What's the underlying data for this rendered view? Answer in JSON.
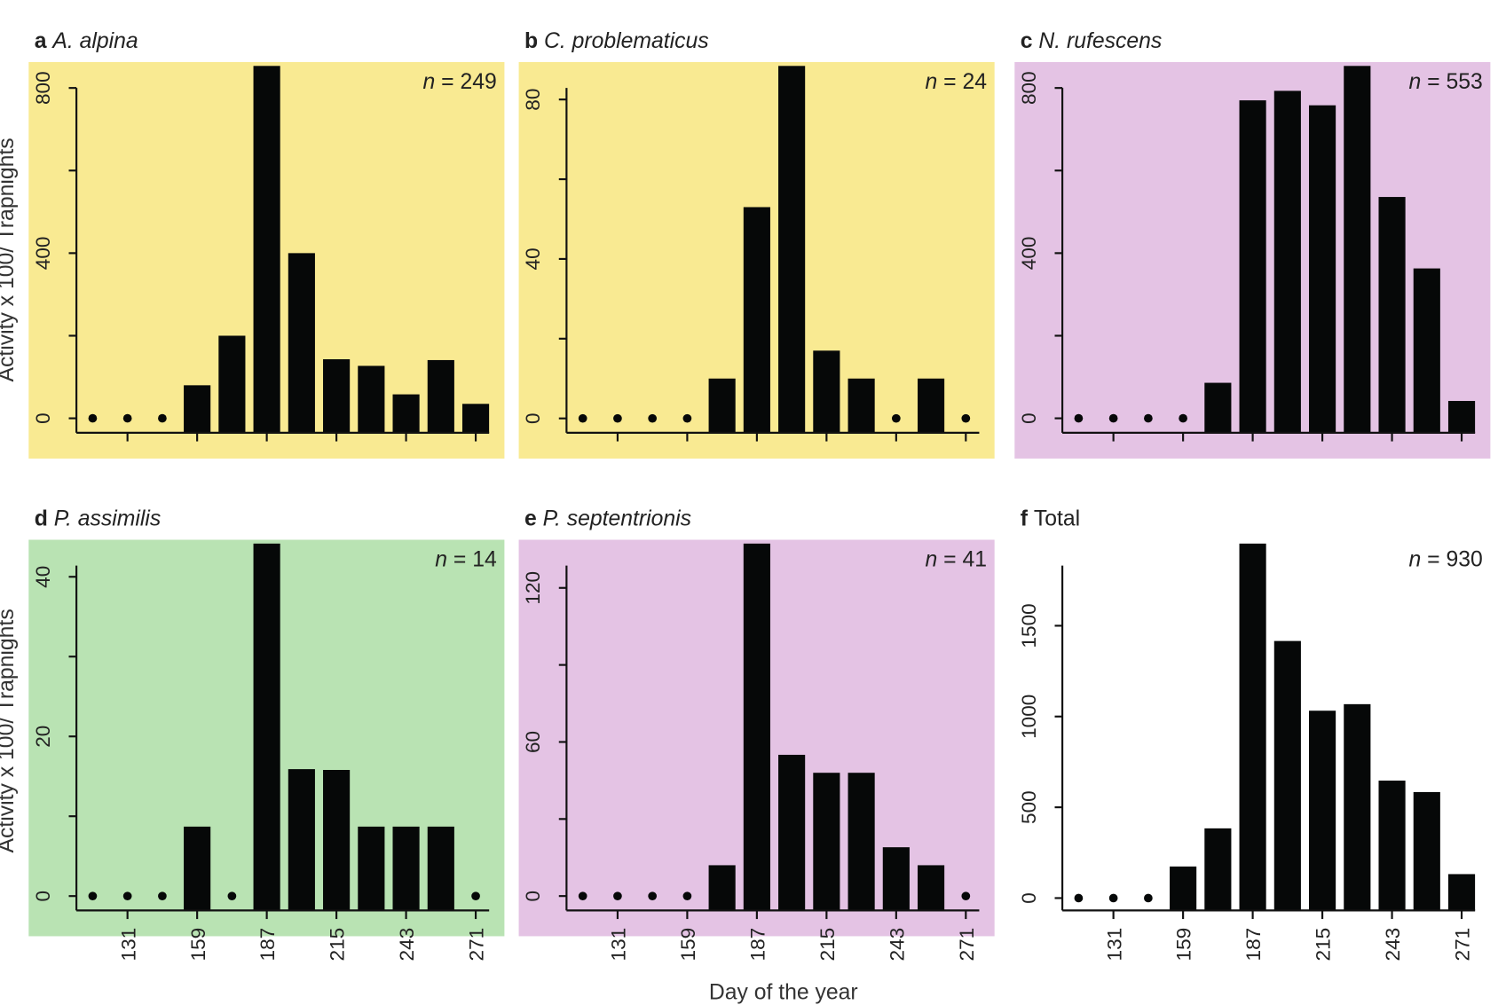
{
  "chart_data": [
    {
      "panel": "a",
      "title": "A. alpina",
      "n_label": "n = 249",
      "background": "#F9EA92",
      "type": "bar",
      "x": [
        117,
        131,
        145,
        159,
        173,
        187,
        201,
        215,
        229,
        243,
        257,
        271
      ],
      "values": [
        0,
        0,
        0,
        80,
        200,
        900,
        400,
        143,
        127,
        58,
        141,
        35
      ],
      "ylim": [
        -35,
        858
      ],
      "yticks": [
        0,
        200,
        400,
        600,
        800
      ],
      "ytick_labels": [
        "0",
        "",
        "400",
        "",
        "800"
      ]
    },
    {
      "panel": "b",
      "title": "C. problematicus",
      "n_label": "n = 24",
      "background": "#F9EA92",
      "type": "bar",
      "x": [
        117,
        131,
        145,
        159,
        173,
        187,
        201,
        215,
        229,
        243,
        257,
        271
      ],
      "values": [
        0,
        0,
        0,
        0,
        10,
        53,
        95,
        17,
        10,
        0,
        10,
        0
      ],
      "ylim": [
        -3.6,
        88.9
      ],
      "yticks": [
        0,
        20,
        40,
        60,
        80
      ],
      "ytick_labels": [
        "0",
        "",
        "40",
        "",
        "80"
      ]
    },
    {
      "panel": "c",
      "title": "N. rufescens",
      "n_label": "n = 553",
      "background": "#E4C3E4",
      "type": "bar",
      "x": [
        117,
        131,
        145,
        159,
        173,
        187,
        201,
        215,
        229,
        243,
        257,
        271
      ],
      "values": [
        0,
        0,
        0,
        0,
        86,
        770,
        793,
        758,
        900,
        536,
        363,
        42
      ],
      "ylim": [
        -35,
        858
      ],
      "yticks": [
        0,
        200,
        400,
        600,
        800
      ],
      "ytick_labels": [
        "0",
        "",
        "400",
        "",
        "800"
      ]
    },
    {
      "panel": "d",
      "title": "P. assimilis",
      "n_label": "n = 14",
      "background": "#B9E3B3",
      "type": "bar",
      "x": [
        117,
        131,
        145,
        159,
        173,
        187,
        201,
        215,
        229,
        243,
        257,
        271
      ],
      "values": [
        0,
        0,
        0,
        8.7,
        0,
        46,
        15.9,
        15.8,
        8.7,
        8.7,
        8.7,
        0
      ],
      "ylim": [
        -1.8,
        44.4
      ],
      "yticks": [
        0,
        10,
        20,
        30,
        40
      ],
      "ytick_labels": [
        "0",
        "",
        "20",
        "",
        "40"
      ]
    },
    {
      "panel": "e",
      "title": "P. septentrionis",
      "n_label": "n = 41",
      "background": "#E4C3E4",
      "type": "bar",
      "x": [
        117,
        131,
        145,
        159,
        173,
        187,
        201,
        215,
        229,
        243,
        257,
        271
      ],
      "values": [
        0,
        0,
        0,
        0,
        12,
        140,
        55,
        48,
        48,
        19,
        12,
        0
      ],
      "ylim": [
        -5.6,
        138
      ],
      "yticks": [
        0,
        30,
        60,
        90,
        120
      ],
      "ytick_labels": [
        "0",
        "",
        "60",
        "",
        "120"
      ]
    },
    {
      "panel": "f",
      "title": "Total",
      "n_label": "n = 930",
      "background": "#FFFFFF",
      "type": "bar",
      "x": [
        117,
        131,
        145,
        159,
        173,
        187,
        201,
        215,
        229,
        243,
        257,
        271
      ],
      "values": [
        0,
        0,
        0,
        174,
        384,
        1980,
        1416,
        1032,
        1068,
        647,
        584,
        132
      ],
      "ylim": [
        -68,
        1963
      ],
      "yticks": [
        0,
        500,
        1000,
        1500
      ],
      "ytick_labels": [
        "0",
        "500",
        "1000",
        "1500"
      ]
    }
  ],
  "shared": {
    "xticks": [
      131,
      159,
      187,
      215,
      243,
      271
    ],
    "xtick_labels": [
      "131",
      "159",
      "187",
      "215",
      "243",
      "271"
    ],
    "xlabel": "Day of the year",
    "ylabel": "Activity x 100/ Trapnights",
    "bar_color": "#060808"
  }
}
